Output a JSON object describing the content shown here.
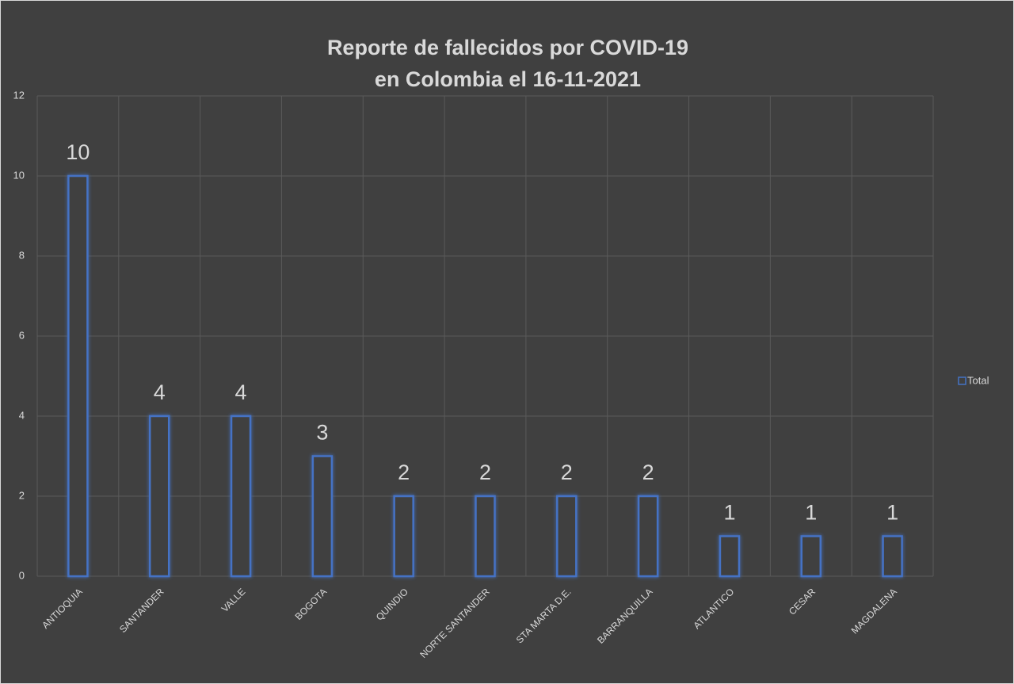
{
  "chart_data": {
    "type": "bar",
    "title": [
      "Reporte de fallecidos por COVID-19",
      "en Colombia el 16-11-2021"
    ],
    "categories": [
      "ANTIOQUIA",
      "SANTANDER",
      "VALLE",
      "BOGOTA",
      "QUINDIO",
      "NORTE SANTANDER",
      "STA MARTA D.E.",
      "BARRANQUILLA",
      "ATLANTICO",
      "CESAR",
      "MAGDALENA"
    ],
    "series": [
      {
        "name": "Total",
        "color": "#4472c4",
        "values": [
          10,
          4,
          4,
          3,
          2,
          2,
          2,
          2,
          1,
          1,
          1
        ]
      }
    ],
    "ylim": [
      0,
      12
    ],
    "yticks": [
      0,
      2,
      4,
      6,
      8,
      10,
      12
    ],
    "grid": true,
    "legend": "right",
    "data_labels": true
  }
}
